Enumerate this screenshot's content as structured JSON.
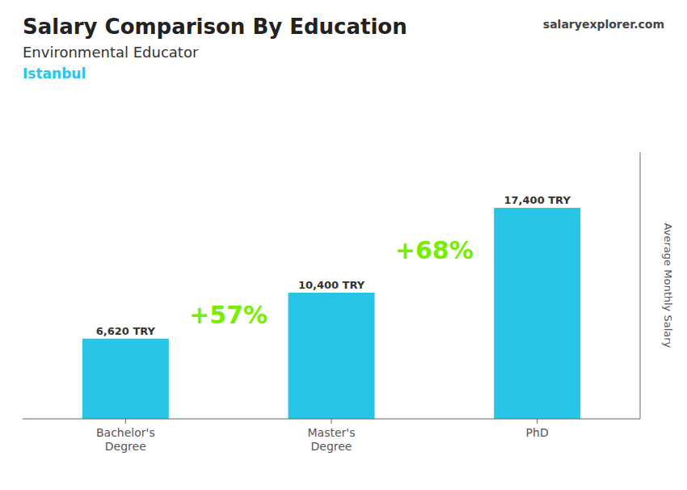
{
  "chart_data": {
    "type": "bar",
    "title": "Salary Comparison By Education",
    "subtitle": [
      "Environmental Educator",
      "Istanbul"
    ],
    "ylabel": "Average Monthly Salary",
    "categories": [
      "Bachelor's\nDegree",
      "Master's\nDegree",
      "PhD"
    ],
    "values": [
      6620,
      10400,
      17400
    ],
    "value_labels": [
      "6,620 TRY",
      "10,400 TRY",
      "17,400 TRY"
    ],
    "data_labels": true,
    "color": "#29c5e6",
    "ylim": [
      0,
      22000
    ],
    "tick_labels": "x",
    "grid": false,
    "annotations": [
      {
        "text": "+57%",
        "color": "#77ee00"
      },
      {
        "text": "+68%",
        "color": "#77ee00"
      },
      {
        "text": "salaryexplorer.com"
      }
    ]
  }
}
